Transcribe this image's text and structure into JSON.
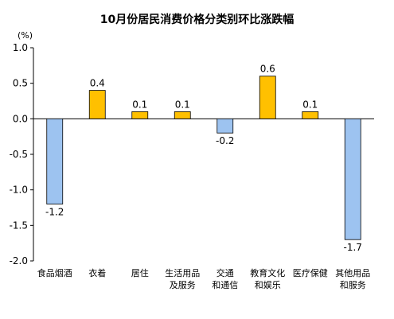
{
  "chart_data": {
    "type": "bar",
    "title": "10月份居民消费价格分类别环比涨跌幅",
    "unit": "(%)",
    "categories": [
      [
        "食品烟酒"
      ],
      [
        "衣着"
      ],
      [
        "居住"
      ],
      [
        "生活用品",
        "及服务"
      ],
      [
        "交通",
        "和通信"
      ],
      [
        "教育文化",
        "和娱乐"
      ],
      [
        "医疗保健"
      ],
      [
        "其他用品",
        "和服务"
      ]
    ],
    "values": [
      -1.2,
      0.4,
      0.1,
      0.1,
      -0.2,
      0.6,
      0.1,
      -1.7
    ],
    "value_labels": [
      "-1.2",
      "0.4",
      "0.1",
      "0.1",
      "-0.2",
      "0.6",
      "0.1",
      "-1.7"
    ],
    "ylim": [
      -2.0,
      1.0
    ],
    "yticks": [
      1.0,
      0.5,
      0.0,
      -0.5,
      -1.0,
      -1.5,
      -2.0
    ],
    "ytick_labels": [
      "1.0",
      "0.5",
      "0.0",
      "-0.5",
      "-1.0",
      "-1.5",
      "-2.0"
    ],
    "grid": false,
    "legend": "none",
    "colors": {
      "positive": "#FFC000",
      "negative": "#9DC3F0",
      "axis": "#000000"
    }
  }
}
